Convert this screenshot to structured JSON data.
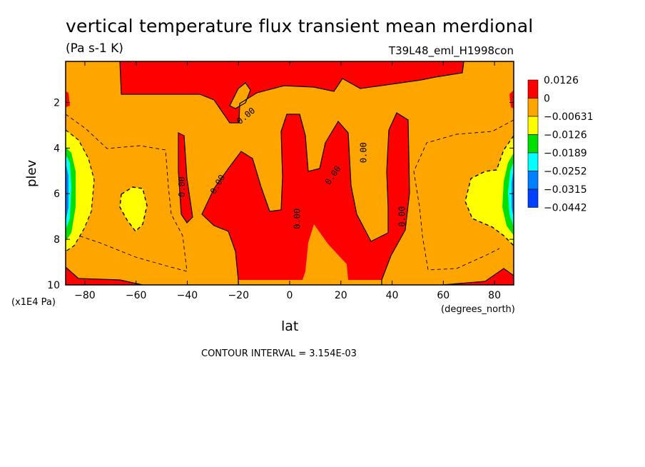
{
  "figure": {
    "title": "vertical temperature flux transient mean merdional",
    "units": "(Pa s-1 K)",
    "dataset": "T39L48_eml_H1998con",
    "ylabel": "plev",
    "yunits": "(x1E4 Pa)",
    "xlabel": "lat",
    "xunits": "(degrees_north)",
    "contour_interval": "CONTOUR INTERVAL = 3.154E-03"
  },
  "chart_data": {
    "type": "heatmap",
    "title": "vertical temperature flux transient mean merdional",
    "xlabel": "lat",
    "ylabel": "plev",
    "x_ticks": [
      {
        "value": -80,
        "label": "−80"
      },
      {
        "value": -60,
        "label": "−60"
      },
      {
        "value": -40,
        "label": "−40"
      },
      {
        "value": -20,
        "label": "−20"
      },
      {
        "value": 0,
        "label": "0"
      },
      {
        "value": 20,
        "label": "20"
      },
      {
        "value": 40,
        "label": "40"
      },
      {
        "value": 60,
        "label": "60"
      },
      {
        "value": 80,
        "label": "80"
      }
    ],
    "y_ticks": [
      {
        "value": 2,
        "label": "2"
      },
      {
        "value": 4,
        "label": "4"
      },
      {
        "value": 6,
        "label": "6"
      },
      {
        "value": 8,
        "label": "8"
      },
      {
        "value": 10,
        "label": "10"
      }
    ],
    "xlim": [
      -87.5,
      87.5
    ],
    "ylim": [
      10,
      0.2
    ],
    "y_inverted": true,
    "contour_label": "0.00",
    "contour_label_positions": [
      {
        "lat": -42,
        "plev": 5.7,
        "rot": -90
      },
      {
        "lat": -28,
        "plev": 5.6,
        "rot": -60
      },
      {
        "lat": -17,
        "plev": 2.6,
        "rot": -40
      },
      {
        "lat": 3,
        "plev": 7.1,
        "rot": -90
      },
      {
        "lat": 17,
        "plev": 5.2,
        "rot": -55
      },
      {
        "lat": 29,
        "plev": 4.2,
        "rot": -90
      },
      {
        "lat": 44,
        "plev": 7.0,
        "rot": -90
      }
    ],
    "legend": {
      "placement": "right",
      "colors": [
        "#ff0000",
        "#ffa500",
        "#ffff00",
        "#00e000",
        "#00ffff",
        "#0080ff",
        "#0040ff"
      ],
      "labels": [
        "0.0126",
        "0",
        "−0.00631",
        "−0.0126",
        "−0.0189",
        "−0.0252",
        "−0.0315",
        "−0.0442"
      ]
    }
  }
}
